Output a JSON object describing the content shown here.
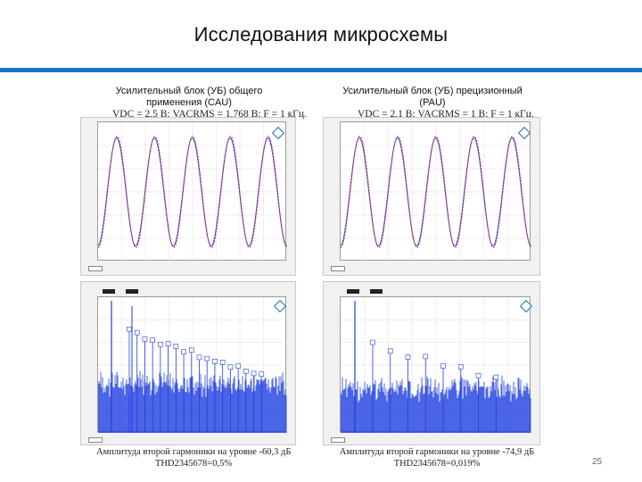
{
  "title": "Исследования микросхемы",
  "colors": {
    "accent": "#1b73b9",
    "sine_a": "#c0243e",
    "sine_b": "#3a4fd1",
    "fft": "#1f3ee0"
  },
  "left": {
    "caption": "Усилительный блок (УБ) общего применения (CAU)",
    "wave_label": "VDC = 2,5 В; VACRMS = 1,768 В; F = 1 кГц.",
    "bottom_line1": "Амплитуда второй гармоники на уровне -60,3 дБ",
    "bottom_line2": "THD2345678=0,5%"
  },
  "right": {
    "caption": "Усилительный блок (УБ) прецизионный (PAU)",
    "wave_label": "VDC = 2,1 В; VACRMS = 1 В; F = 1 кГц.",
    "bottom_line1": "Амплитуда второй гармоники на уровне -74,9 дБ",
    "bottom_line2": "THD2345678=0,019%"
  },
  "page_number": "25",
  "chart_data": [
    {
      "type": "line",
      "description_ref": "left time-domain",
      "cycles": 5,
      "series": [
        {
          "values": []
        }
      ]
    },
    {
      "type": "line",
      "description_ref": "right time-domain",
      "cycles": 5,
      "series": [
        {
          "values": []
        }
      ]
    },
    {
      "type": "bar",
      "description_ref": "left FFT spectrum",
      "values": []
    },
    {
      "type": "bar",
      "description_ref": "right FFT spectrum",
      "values": []
    }
  ]
}
